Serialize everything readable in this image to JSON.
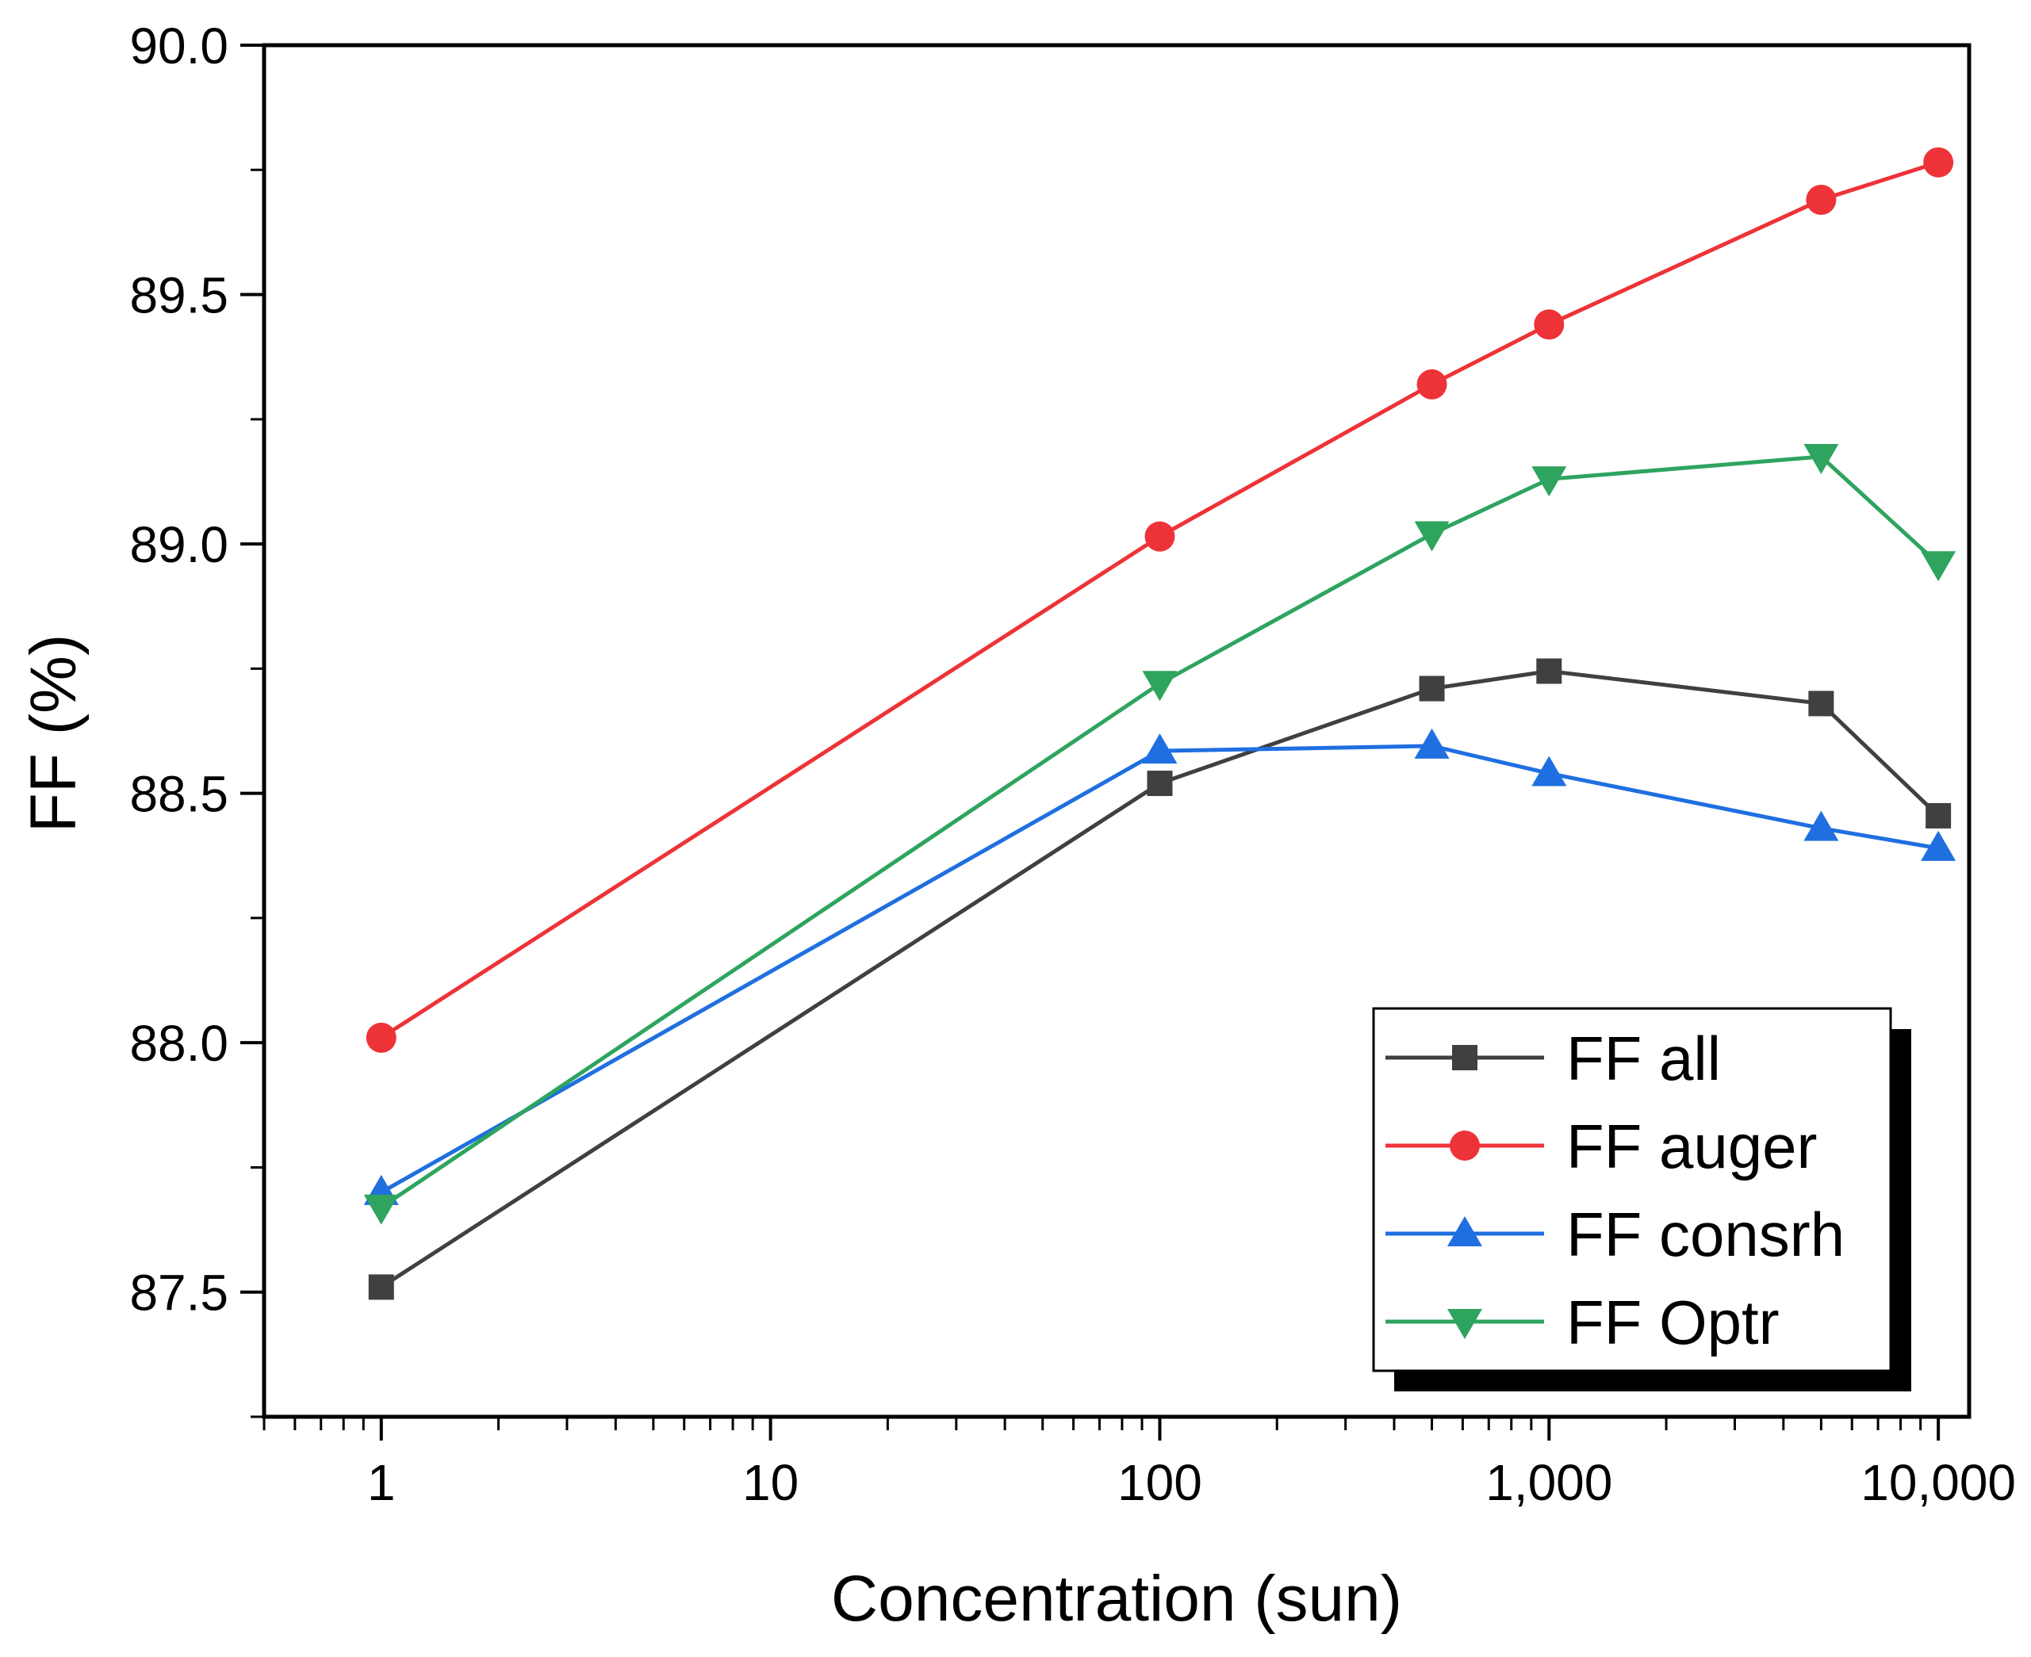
{
  "chart_data": {
    "type": "line",
    "xscale": "log",
    "xlabel": "Concentration (sun)",
    "ylabel": "FF (%)",
    "xlim": [
      0.5,
      12000
    ],
    "ylim": [
      87.25,
      90.0
    ],
    "x_ticks": [
      {
        "value": 1,
        "label": "1"
      },
      {
        "value": 10,
        "label": "10"
      },
      {
        "value": 100,
        "label": "100"
      },
      {
        "value": 1000,
        "label": "1,000"
      },
      {
        "value": 10000,
        "label": "10,000"
      }
    ],
    "y_ticks": [
      {
        "value": 87.5,
        "label": "87.5"
      },
      {
        "value": 88.0,
        "label": "88.0"
      },
      {
        "value": 88.5,
        "label": "88.5"
      },
      {
        "value": 89.0,
        "label": "89.0"
      },
      {
        "value": 89.5,
        "label": "89.5"
      },
      {
        "value": 90.0,
        "label": "90.0"
      }
    ],
    "y_minor_step": 0.25,
    "legend_position": "bottom-right",
    "x": [
      1,
      100,
      500,
      1000,
      5000,
      10000
    ],
    "series": [
      {
        "name": "FF all",
        "color": "#404040",
        "marker": "square",
        "values": [
          87.51,
          88.52,
          88.71,
          88.745,
          88.68,
          88.455
        ]
      },
      {
        "name": "FF auger",
        "color": "#ee3338",
        "marker": "circle",
        "values": [
          88.01,
          89.015,
          89.32,
          89.44,
          89.69,
          89.765
        ]
      },
      {
        "name": "FF consrh",
        "color": "#1f6fe0",
        "marker": "triangle-up",
        "values": [
          87.7,
          88.585,
          88.595,
          88.54,
          88.43,
          88.39
        ]
      },
      {
        "name": "FF Optr",
        "color": "#2ea45f",
        "marker": "triangle-down",
        "values": [
          87.67,
          88.72,
          89.02,
          89.13,
          89.175,
          88.96
        ]
      }
    ]
  }
}
